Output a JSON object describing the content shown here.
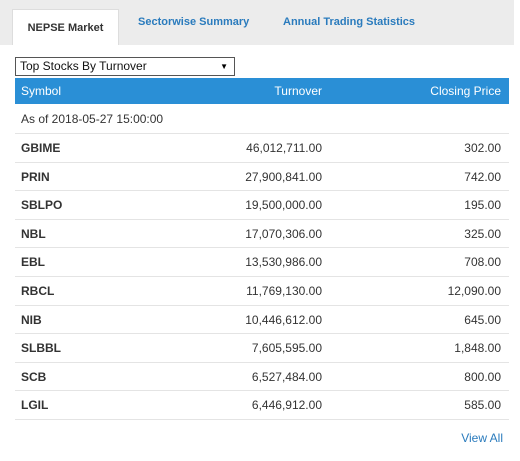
{
  "tabs": [
    {
      "label": "NEPSE Market",
      "active": true
    },
    {
      "label": "Sectorwise Summary",
      "active": false
    },
    {
      "label": "Annual Trading Statistics",
      "active": false
    }
  ],
  "select": {
    "value": "Top Stocks By Turnover",
    "arrow_icon": "triangle-down-icon"
  },
  "table": {
    "headers": {
      "symbol": "Symbol",
      "turnover": "Turnover",
      "closing_price": "Closing Price"
    },
    "as_of": "As of 2018-05-27 15:00:00",
    "rows": [
      {
        "symbol": "GBIME",
        "turnover": "46,012,711.00",
        "closing_price": "302.00"
      },
      {
        "symbol": "PRIN",
        "turnover": "27,900,841.00",
        "closing_price": "742.00"
      },
      {
        "symbol": "SBLPO",
        "turnover": "19,500,000.00",
        "closing_price": "195.00"
      },
      {
        "symbol": "NBL",
        "turnover": "17,070,306.00",
        "closing_price": "325.00"
      },
      {
        "symbol": "EBL",
        "turnover": "13,530,986.00",
        "closing_price": "708.00"
      },
      {
        "symbol": "RBCL",
        "turnover": "11,769,130.00",
        "closing_price": "12,090.00"
      },
      {
        "symbol": "NIB",
        "turnover": "10,446,612.00",
        "closing_price": "645.00"
      },
      {
        "symbol": "SLBBL",
        "turnover": "7,605,595.00",
        "closing_price": "1,848.00"
      },
      {
        "symbol": "SCB",
        "turnover": "6,527,484.00",
        "closing_price": "800.00"
      },
      {
        "symbol": "LGIL",
        "turnover": "6,446,912.00",
        "closing_price": "585.00"
      }
    ]
  },
  "footer": {
    "view_all": "View All"
  },
  "colors": {
    "accent": "#2a8fd6",
    "link": "#2a7bbd",
    "tabbar_bg": "#ececec"
  }
}
